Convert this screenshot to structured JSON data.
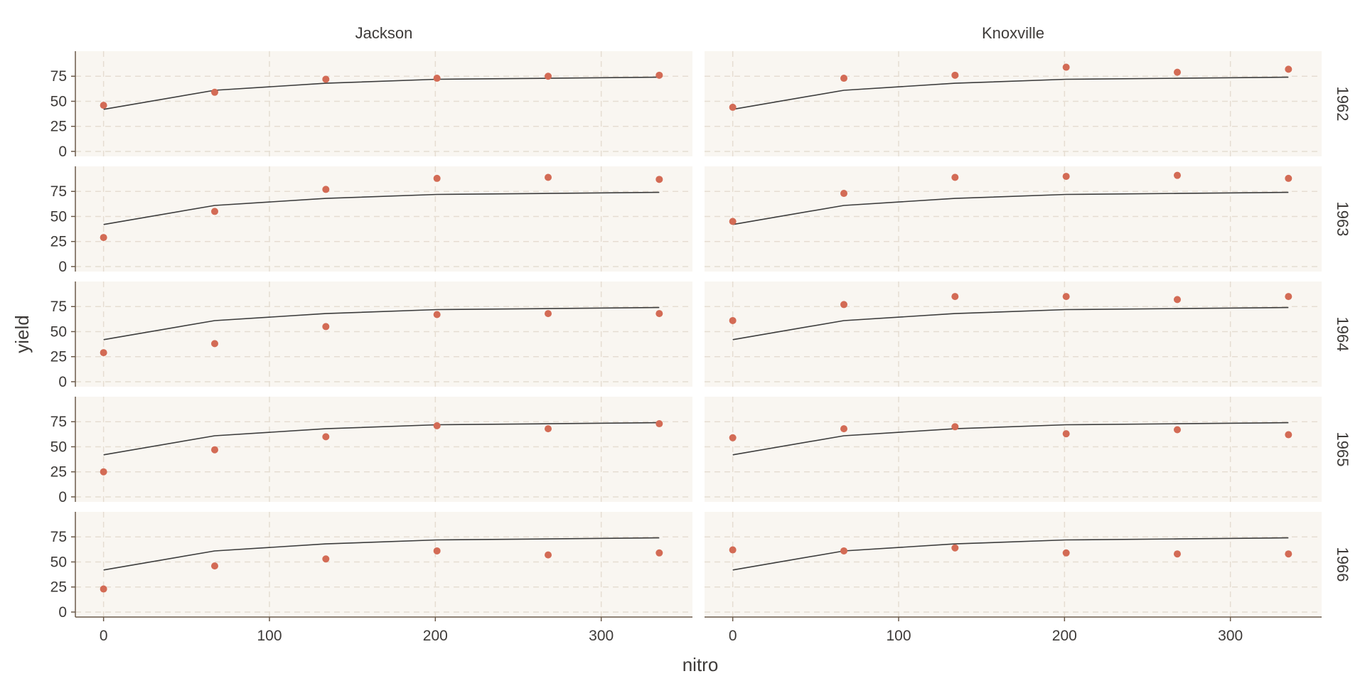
{
  "colors": {
    "panel_bg": "#f9f6f1",
    "grid": "#e6ddd2",
    "axis": "#6b5a4a",
    "text": "#3e3b39",
    "point": "#d36b55",
    "line": "#3d3d3d"
  },
  "chart_data": {
    "type": "scatter",
    "facet": "grid",
    "xlabel": "nitro",
    "ylabel": "yield",
    "x_ticks": [
      0,
      100,
      200,
      300
    ],
    "y_ticks": [
      0,
      25,
      50,
      75
    ],
    "xlim": [
      -17,
      355
    ],
    "ylim": [
      -5,
      100
    ],
    "columns": [
      "Jackson",
      "Knoxville"
    ],
    "rows": [
      "1962",
      "1963",
      "1964",
      "1965",
      "1966"
    ],
    "grid": "dashed",
    "x": [
      0,
      67,
      134,
      201,
      268,
      335
    ],
    "fitted_line": [
      42,
      61,
      68,
      72,
      73,
      74
    ],
    "panels": [
      {
        "column": "Jackson",
        "row": "1962",
        "y": [
          46,
          59,
          72,
          73,
          75,
          76
        ]
      },
      {
        "column": "Knoxville",
        "row": "1962",
        "y": [
          44,
          73,
          76,
          84,
          79,
          82
        ]
      },
      {
        "column": "Jackson",
        "row": "1963",
        "y": [
          29,
          55,
          77,
          88,
          89,
          87
        ]
      },
      {
        "column": "Knoxville",
        "row": "1963",
        "y": [
          45,
          73,
          89,
          90,
          91,
          88
        ]
      },
      {
        "column": "Jackson",
        "row": "1964",
        "y": [
          29,
          38,
          55,
          67,
          68,
          68
        ]
      },
      {
        "column": "Knoxville",
        "row": "1964",
        "y": [
          61,
          77,
          85,
          85,
          82,
          85
        ]
      },
      {
        "column": "Jackson",
        "row": "1965",
        "y": [
          25,
          47,
          60,
          71,
          68,
          73
        ]
      },
      {
        "column": "Knoxville",
        "row": "1965",
        "y": [
          59,
          68,
          70,
          63,
          67,
          62
        ]
      },
      {
        "column": "Jackson",
        "row": "1966",
        "y": [
          23,
          46,
          53,
          61,
          57,
          59
        ]
      },
      {
        "column": "Knoxville",
        "row": "1966",
        "y": [
          62,
          61,
          64,
          59,
          58,
          58
        ]
      }
    ]
  }
}
